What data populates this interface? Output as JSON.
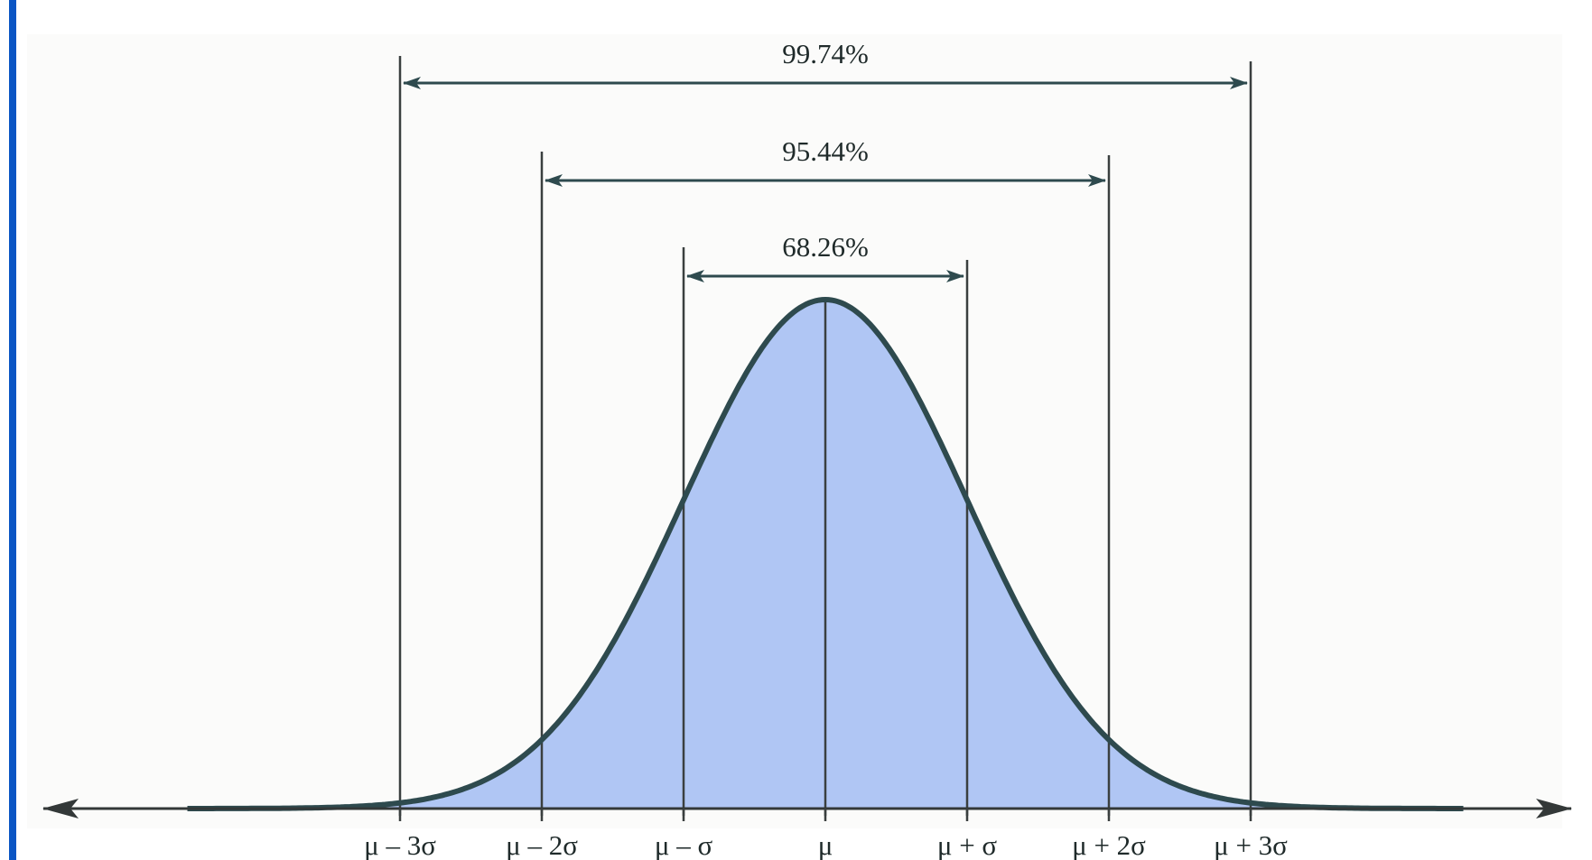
{
  "chart_data": {
    "type": "area",
    "title": "",
    "xlabel": "",
    "ylabel": "",
    "distribution": "normal",
    "x_range_sigma": [
      -4.5,
      4.5
    ],
    "sigma_markers": [
      -3,
      -2,
      -1,
      0,
      1,
      2,
      3
    ],
    "tick_labels": [
      "μ – 3σ",
      "μ – 2σ",
      "μ – σ",
      "μ",
      "μ + σ",
      "μ + 2σ",
      "μ + 3σ"
    ],
    "intervals": [
      {
        "label": "99.74%",
        "from_sigma": -3,
        "to_sigma": 3
      },
      {
        "label": "95.44%",
        "from_sigma": -2,
        "to_sigma": 2
      },
      {
        "label": "68.26%",
        "from_sigma": -1,
        "to_sigma": 1
      }
    ],
    "colors": {
      "fill": "#b0c6f4",
      "curve": "#2e4a4e",
      "lines": "#3a3f3f",
      "frame_bar": "#0a55c4"
    }
  }
}
